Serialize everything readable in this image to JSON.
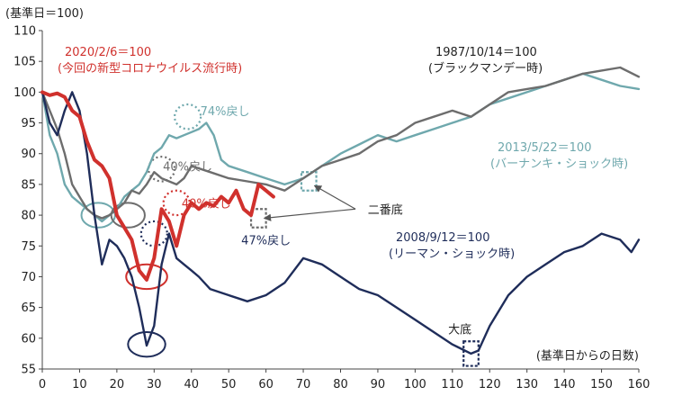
{
  "chart_data": {
    "type": "line",
    "y_unit_label": "(基準日＝100)",
    "x_unit_label": "(基準日からの日数)",
    "xlim": [
      0,
      160
    ],
    "ylim": [
      55,
      110
    ],
    "x_ticks": [
      0,
      10,
      20,
      30,
      40,
      50,
      60,
      70,
      80,
      90,
      100,
      110,
      120,
      130,
      140,
      150,
      160
    ],
    "y_ticks": [
      55,
      60,
      65,
      70,
      75,
      80,
      85,
      90,
      95,
      100,
      105,
      110
    ],
    "grid": false,
    "colors": {
      "covid": "#d0312d",
      "black_monday": "#6d6d6d",
      "bernanke": "#6fa8ad",
      "lehman": "#1f2d5a"
    },
    "series": [
      {
        "id": "covid",
        "title": "2020/2/6＝100",
        "subtitle": "(今回の新型コロナウイルス流行時)",
        "x": [
          0,
          2,
          4,
          6,
          8,
          10,
          12,
          14,
          16,
          18,
          20,
          22,
          24,
          26,
          28,
          30,
          32,
          34,
          36,
          38,
          40,
          42,
          44,
          46,
          48,
          50,
          52,
          54,
          56,
          58,
          60,
          62
        ],
        "values": [
          100,
          99.5,
          99.8,
          99.2,
          97,
          96,
          92,
          89,
          88,
          86,
          80,
          78,
          76,
          71,
          69.5,
          73,
          81,
          79,
          75,
          80,
          82,
          81,
          82,
          81.5,
          83,
          82,
          84,
          81,
          80,
          85,
          84,
          83
        ]
      },
      {
        "id": "black_monday",
        "title": "1987/10/14＝100",
        "subtitle": "(ブラックマンデー時)",
        "x": [
          0,
          2,
          4,
          6,
          8,
          10,
          12,
          14,
          16,
          18,
          20,
          22,
          24,
          26,
          28,
          30,
          32,
          34,
          36,
          38,
          40,
          45,
          50,
          55,
          60,
          65,
          70,
          75,
          80,
          85,
          90,
          95,
          100,
          105,
          110,
          115,
          120,
          125,
          130,
          135,
          140,
          145,
          150,
          155,
          160
        ],
        "values": [
          100,
          97,
          94,
          90,
          85,
          83,
          81,
          80,
          79.5,
          80,
          81,
          82,
          84,
          83.5,
          85,
          87,
          86,
          85.5,
          85,
          86,
          88,
          87,
          86,
          85.5,
          85,
          84,
          86,
          88,
          89,
          90,
          92,
          93,
          95,
          96,
          97,
          96,
          98,
          100,
          100.5,
          101,
          102,
          103,
          103.5,
          104,
          102.5
        ]
      },
      {
        "id": "bernanke",
        "title": "2013/5/22＝100",
        "subtitle": "(バーナンキ・ショック時)",
        "x": [
          0,
          2,
          4,
          6,
          8,
          10,
          12,
          14,
          16,
          18,
          20,
          22,
          24,
          26,
          28,
          30,
          32,
          34,
          36,
          38,
          40,
          42,
          44,
          46,
          48,
          50,
          55,
          60,
          65,
          70,
          75,
          80,
          85,
          90,
          95,
          100,
          105,
          110,
          115,
          120,
          125,
          130,
          135,
          140,
          145,
          150,
          155,
          160
        ],
        "values": [
          100,
          93,
          90,
          85,
          83,
          82,
          81,
          80,
          79,
          80,
          81,
          83,
          84,
          85,
          87,
          90,
          91,
          93,
          92.5,
          93,
          93.5,
          94,
          95,
          93,
          89,
          88,
          87,
          86,
          85,
          86,
          88,
          90,
          91.5,
          93,
          92,
          93,
          94,
          95,
          96,
          98,
          99,
          100,
          101,
          102,
          103,
          102,
          101,
          100.5
        ]
      },
      {
        "id": "lehman",
        "title": "2008/9/12＝100",
        "subtitle": "(リーマン・ショック時)",
        "x": [
          0,
          2,
          4,
          6,
          8,
          10,
          12,
          14,
          16,
          18,
          20,
          22,
          24,
          26,
          28,
          30,
          32,
          34,
          36,
          38,
          40,
          42,
          45,
          50,
          55,
          60,
          65,
          70,
          75,
          80,
          85,
          90,
          95,
          100,
          105,
          110,
          115,
          117,
          120,
          125,
          130,
          135,
          140,
          145,
          150,
          155,
          158,
          160
        ],
        "values": [
          100,
          95,
          93,
          97,
          100,
          97,
          90,
          80,
          72,
          76,
          75,
          73,
          70,
          65,
          58.8,
          62,
          72,
          77,
          73,
          72,
          71,
          70,
          68,
          67,
          66,
          67,
          69,
          73,
          72,
          70,
          68,
          67,
          65,
          63,
          61,
          59,
          57.5,
          58,
          62,
          67,
          70,
          72,
          74,
          75,
          77,
          76,
          74,
          76
        ]
      }
    ],
    "annotations": [
      {
        "text": "74%戻し",
        "color": "#6fa8ad",
        "x": 49,
        "y": 97
      },
      {
        "text": "40%戻し",
        "color": "#6d6d6d",
        "x": 39,
        "y": 88
      },
      {
        "text": "40%戻し",
        "color": "#d0312d",
        "x": 44,
        "y": 82
      },
      {
        "text": "47%戻し",
        "color": "#1f2d5a",
        "x": 60,
        "y": 76
      },
      {
        "text": "二番底",
        "color": "#222222",
        "x": 92,
        "y": 81
      },
      {
        "text": "大底",
        "color": "#222222",
        "x": 112,
        "y": 61.5
      }
    ],
    "markers": [
      {
        "shape": "ellipse",
        "style": "solid",
        "color": "#6fa8ad",
        "x": 15,
        "y": 80,
        "rx": 4.5,
        "ry": 2
      },
      {
        "shape": "ellipse",
        "style": "solid",
        "color": "#6d6d6d",
        "x": 23,
        "y": 80,
        "rx": 4.5,
        "ry": 2
      },
      {
        "shape": "ellipse",
        "style": "solid",
        "color": "#d0312d",
        "x": 28,
        "y": 70,
        "rx": 5.5,
        "ry": 2
      },
      {
        "shape": "ellipse",
        "style": "solid",
        "color": "#1f2d5a",
        "x": 28,
        "y": 59,
        "rx": 5,
        "ry": 2
      },
      {
        "shape": "ellipse",
        "style": "dotted",
        "color": "#6fa8ad",
        "x": 39,
        "y": 96,
        "rx": 3.5,
        "ry": 2
      },
      {
        "shape": "ellipse",
        "style": "dotted",
        "color": "#6d6d6d",
        "x": 32,
        "y": 87.5,
        "rx": 3.5,
        "ry": 2
      },
      {
        "shape": "ellipse",
        "style": "dotted",
        "color": "#d0312d",
        "x": 36,
        "y": 82,
        "rx": 3.5,
        "ry": 2
      },
      {
        "shape": "ellipse",
        "style": "dotted",
        "color": "#1f2d5a",
        "x": 30,
        "y": 77,
        "rx": 3.5,
        "ry": 2
      },
      {
        "shape": "rect",
        "style": "dashed",
        "color": "#6fa8ad",
        "x": 71.5,
        "y": 85.5,
        "rx": 2,
        "ry": 1.5
      },
      {
        "shape": "rect",
        "style": "dashed",
        "color": "#6d6d6d",
        "x": 58,
        "y": 79.5,
        "rx": 2,
        "ry": 1.5
      },
      {
        "shape": "rect",
        "style": "dashed",
        "color": "#1f2d5a",
        "x": 115,
        "y": 57.5,
        "rx": 2,
        "ry": 2
      }
    ],
    "arrows": [
      {
        "from": [
          84,
          81
        ],
        "to": [
          59.5,
          79.5
        ]
      },
      {
        "from": [
          84,
          81
        ],
        "to": [
          73,
          84.8
        ]
      }
    ]
  }
}
